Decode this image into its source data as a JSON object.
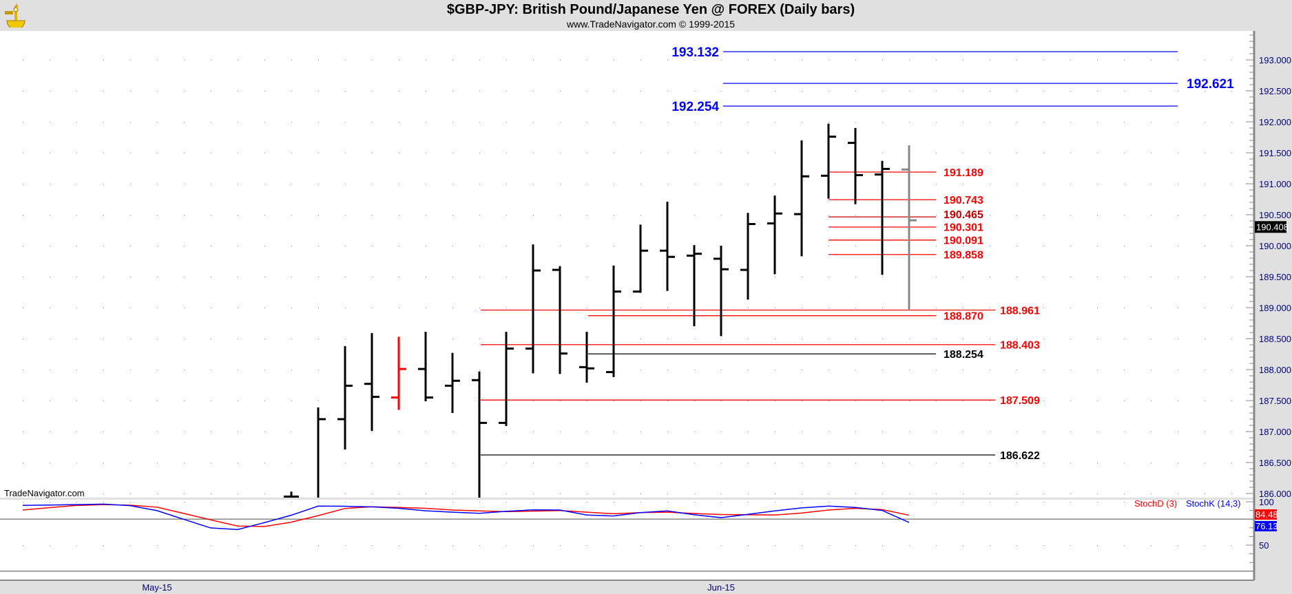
{
  "header": {
    "title": "$GBP-JPY:  British Pound/Japanese Yen @ FOREX  (Daily bars)",
    "subtitle": "www.TradeNavigator.com © 1999-2015",
    "watermark": "TradeNavigator.com"
  },
  "colors": {
    "up": "#000000",
    "down_highlight": "#ff0000",
    "last_bar": "#888888",
    "blue_level": "#0000ff",
    "red_level": "#ff0000",
    "black_level": "#000000",
    "stoch_d": "#ff0000",
    "stoch_k": "#0000ff"
  },
  "chart_data": [
    {
      "type": "ohlc",
      "title": "$GBP-JPY Daily bars",
      "ylim": [
        185.9,
        193.4
      ],
      "y_ticks": [
        "193.000",
        "192.500",
        "192.000",
        "191.500",
        "191.000",
        "190.500",
        "190.000",
        "189.500",
        "189.000",
        "188.500",
        "188.000",
        "187.500",
        "187.000",
        "186.500",
        "186.000"
      ],
      "x_tick_labels": [
        {
          "label": "May-15",
          "day": -5
        },
        {
          "label": "Jun-15",
          "day": 16
        }
      ],
      "last_price": "190.408",
      "bars": [
        {
          "o": 185.95,
          "h": 186.03,
          "l": 185.9,
          "c": 185.95,
          "color": "up"
        },
        {
          "o": 185.9,
          "h": 187.39,
          "l": 185.9,
          "c": 187.2,
          "color": "up"
        },
        {
          "o": 187.2,
          "h": 188.38,
          "l": 186.71,
          "c": 187.74,
          "color": "up"
        },
        {
          "o": 187.77,
          "h": 188.59,
          "l": 187.01,
          "c": 187.56,
          "color": "up"
        },
        {
          "o": 187.55,
          "h": 188.53,
          "l": 187.35,
          "c": 188.01,
          "color": "down_highlight"
        },
        {
          "o": 188.01,
          "h": 188.61,
          "l": 187.49,
          "c": 187.55,
          "color": "up"
        },
        {
          "o": 187.74,
          "h": 188.27,
          "l": 187.3,
          "c": 187.82,
          "color": "up"
        },
        {
          "o": 187.83,
          "h": 187.97,
          "l": 185.9,
          "c": 187.14,
          "color": "up"
        },
        {
          "o": 187.14,
          "h": 188.61,
          "l": 187.09,
          "c": 188.34,
          "color": "up"
        },
        {
          "o": 188.34,
          "h": 190.02,
          "l": 187.94,
          "c": 189.6,
          "color": "up"
        },
        {
          "o": 189.61,
          "h": 189.67,
          "l": 187.93,
          "c": 188.26,
          "color": "up"
        },
        {
          "o": 188.04,
          "h": 188.61,
          "l": 187.79,
          "c": 188.02,
          "color": "up"
        },
        {
          "o": 187.96,
          "h": 189.68,
          "l": 187.88,
          "c": 189.26,
          "color": "up"
        },
        {
          "o": 189.26,
          "h": 190.34,
          "l": 189.24,
          "c": 189.92,
          "color": "up"
        },
        {
          "o": 189.92,
          "h": 190.71,
          "l": 189.27,
          "c": 189.82,
          "color": "up"
        },
        {
          "o": 189.84,
          "h": 190.01,
          "l": 188.7,
          "c": 189.87,
          "color": "up"
        },
        {
          "o": 189.79,
          "h": 190.0,
          "l": 188.54,
          "c": 189.62,
          "color": "up"
        },
        {
          "o": 189.61,
          "h": 190.53,
          "l": 189.13,
          "c": 190.35,
          "color": "up"
        },
        {
          "o": 190.36,
          "h": 190.81,
          "l": 189.54,
          "c": 190.52,
          "color": "up"
        },
        {
          "o": 190.51,
          "h": 191.7,
          "l": 189.83,
          "c": 191.12,
          "color": "up"
        },
        {
          "o": 191.13,
          "h": 191.97,
          "l": 190.76,
          "c": 191.76,
          "color": "up"
        },
        {
          "o": 191.66,
          "h": 191.9,
          "l": 190.67,
          "c": 191.14,
          "color": "up"
        },
        {
          "o": 191.15,
          "h": 191.37,
          "l": 189.53,
          "c": 191.24,
          "color": "up"
        },
        {
          "o": 191.23,
          "h": 191.62,
          "l": 188.96,
          "c": 190.41,
          "color": "last_bar"
        }
      ],
      "levels": [
        {
          "value": 193.132,
          "label": "193.132",
          "color": "#0000ff"
        },
        {
          "value": 192.621,
          "label": "192.621",
          "color": "#0000ff"
        },
        {
          "value": 192.254,
          "label": "192.254",
          "color": "#0000ff"
        },
        {
          "value": 191.189,
          "label": "191.189",
          "color": "#ff0000"
        },
        {
          "value": 190.743,
          "label": "190.743",
          "color": "#ff0000"
        },
        {
          "value": 190.465,
          "label": "190.465",
          "color": "#c00000"
        },
        {
          "value": 190.301,
          "label": "190.301",
          "color": "#ff0000"
        },
        {
          "value": 190.091,
          "label": "190.091",
          "color": "#ff0000"
        },
        {
          "value": 189.858,
          "label": "189.858",
          "color": "#ff0000"
        },
        {
          "value": 188.961,
          "label": "188.961",
          "color": "#ff0000"
        },
        {
          "value": 188.87,
          "label": "188.870",
          "color": "#ff0000"
        },
        {
          "value": 188.403,
          "label": "188.403",
          "color": "#ff0000"
        },
        {
          "value": 188.254,
          "label": "188.254",
          "color": "#000000"
        },
        {
          "value": 187.509,
          "label": "187.509",
          "color": "#ff0000"
        },
        {
          "value": 186.622,
          "label": "186.622",
          "color": "#000000"
        }
      ]
    },
    {
      "type": "line",
      "title": "Stochastic",
      "ylim": [
        0,
        100
      ],
      "y_ticks": [
        "100",
        "50"
      ],
      "reference_lines": [
        80,
        20
      ],
      "first_day": -10,
      "series": [
        {
          "name": "StochD (3)",
          "color": "#ff0000",
          "last": "84.48",
          "values": [
            90.5,
            93.3,
            95.7,
            96.7,
            96.0,
            93.8,
            86.5,
            79.2,
            72.0,
            71.5,
            76.5,
            84.0,
            92.3,
            94.2,
            93.5,
            92.5,
            90.5,
            89.5,
            88.6,
            89.2,
            89.9,
            88.0,
            86.2,
            87.5,
            88.0,
            86.5,
            85.3,
            85.0,
            84.7,
            87.0,
            90.5,
            92.5,
            91.0,
            84.48
          ]
        },
        {
          "name": "StochK (14,3)",
          "color": "#0000ff",
          "last": "76.13",
          "values": [
            95.8,
            96.2,
            96.7,
            97.3,
            95.5,
            89.8,
            79.7,
            69.8,
            68.0,
            76.0,
            84.5,
            95.0,
            94.8,
            94.1,
            92.5,
            89.6,
            88.0,
            86.7,
            89.0,
            90.7,
            90.5,
            84.7,
            83.6,
            87.5,
            89.5,
            85.0,
            81.7,
            85.5,
            89.5,
            93.0,
            95.0,
            93.5,
            90.0,
            76.13
          ]
        }
      ]
    }
  ]
}
